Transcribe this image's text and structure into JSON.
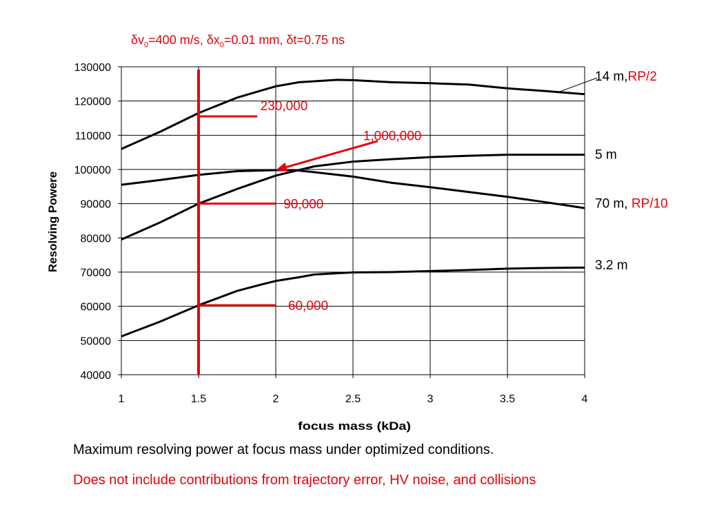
{
  "params": {
    "dv": "δv",
    "dv_sub": "0",
    "dv_rest": "=400 m/s, ",
    "dx": "δx",
    "dx_sub": "0",
    "dx_rest": "=0.01 mm, ",
    "dt": "δt=0.75 ns"
  },
  "captions": {
    "line1": "Maximum resolving power at focus mass under optimized conditions.",
    "line2": "Does not include contributions from trajectory error, HV noise, and collisions"
  },
  "colors": {
    "accent_red": "#e8000b",
    "curve": "#000000",
    "grid": "#000000"
  },
  "chart_data": {
    "type": "line",
    "xlabel": "focus mass (kDa)",
    "ylabel": "Resolving Powere",
    "xlim": [
      1,
      4
    ],
    "ylim": [
      40000,
      130000
    ],
    "xticks": [
      1,
      1.5,
      2,
      2.5,
      3,
      3.5,
      4
    ],
    "xtick_labels": [
      "1",
      "1.5",
      "2",
      "2.5",
      "3",
      "3.5",
      "4"
    ],
    "yticks": [
      40000,
      50000,
      60000,
      70000,
      80000,
      90000,
      100000,
      110000,
      120000,
      130000
    ],
    "ytick_labels": [
      "40000",
      "50000",
      "60000",
      "70000",
      "80000",
      "90000",
      "100000",
      "110000",
      "120000",
      "130000"
    ],
    "grid": true,
    "series": [
      {
        "name": "14 m,",
        "name_suffix": "RP/2",
        "x": [
          1,
          1.25,
          1.5,
          1.75,
          1.9,
          2,
          2.15,
          2.4,
          2.5,
          2.75,
          3,
          3.25,
          3.5,
          3.75,
          4
        ],
        "y": [
          106000,
          111000,
          116500,
          121000,
          123000,
          124300,
          125500,
          126200,
          126100,
          125500,
          125200,
          124800,
          123700,
          122900,
          122000
        ],
        "label_value_y": 122000
      },
      {
        "name": "5 m",
        "name_suffix": "",
        "x": [
          1,
          1.25,
          1.5,
          1.75,
          2,
          2.25,
          2.5,
          2.75,
          3,
          3.25,
          3.5,
          3.75,
          4
        ],
        "y": [
          79500,
          84500,
          90000,
          94300,
          98200,
          100900,
          102300,
          103000,
          103600,
          104000,
          104300,
          104300,
          104300
        ],
        "label_value_y": 104300
      },
      {
        "name": "70 m, ",
        "name_suffix": "RP/10",
        "x": [
          1,
          1.25,
          1.5,
          1.75,
          2,
          2.12,
          2.25,
          2.5,
          2.75,
          3,
          3.25,
          3.5,
          3.75,
          4
        ],
        "y": [
          95500,
          96900,
          98400,
          99500,
          99800,
          99800,
          99200,
          97900,
          96100,
          94800,
          93400,
          92000,
          90400,
          88700
        ],
        "label_value_y": 90000
      },
      {
        "name": "3.2 m",
        "name_suffix": "",
        "x": [
          1,
          1.25,
          1.5,
          1.75,
          1.9,
          2,
          2.15,
          2.25,
          2.5,
          2.75,
          3,
          3.25,
          3.5,
          3.75,
          4
        ],
        "y": [
          51200,
          55500,
          60300,
          64500,
          66300,
          67400,
          68500,
          69300,
          69900,
          70000,
          70300,
          70600,
          71000,
          71200,
          71300
        ],
        "label_value_y": 72000
      }
    ],
    "annotations": {
      "vertical_line_x": 1.5,
      "markers": [
        {
          "label": "230,000",
          "y": 115500,
          "x_start": 1.5,
          "x_end": 1.88,
          "label_x": 1.9,
          "label_y": 118700
        },
        {
          "label": "90,000",
          "y": 90000,
          "x_start": 1.5,
          "x_end": 2.0,
          "label_x": 2.05,
          "label_y": 90000
        },
        {
          "label": "60,000",
          "y": 60300,
          "x_start": 1.5,
          "x_end": 2.0,
          "label_x": 2.08,
          "label_y": 60300
        }
      ],
      "arrow": {
        "label": "1,000,000",
        "from_x": 2.66,
        "from_y": 108300,
        "to_x": 2.0,
        "to_y": 99800,
        "label_x": 2.7,
        "label_y": 110000
      }
    }
  }
}
